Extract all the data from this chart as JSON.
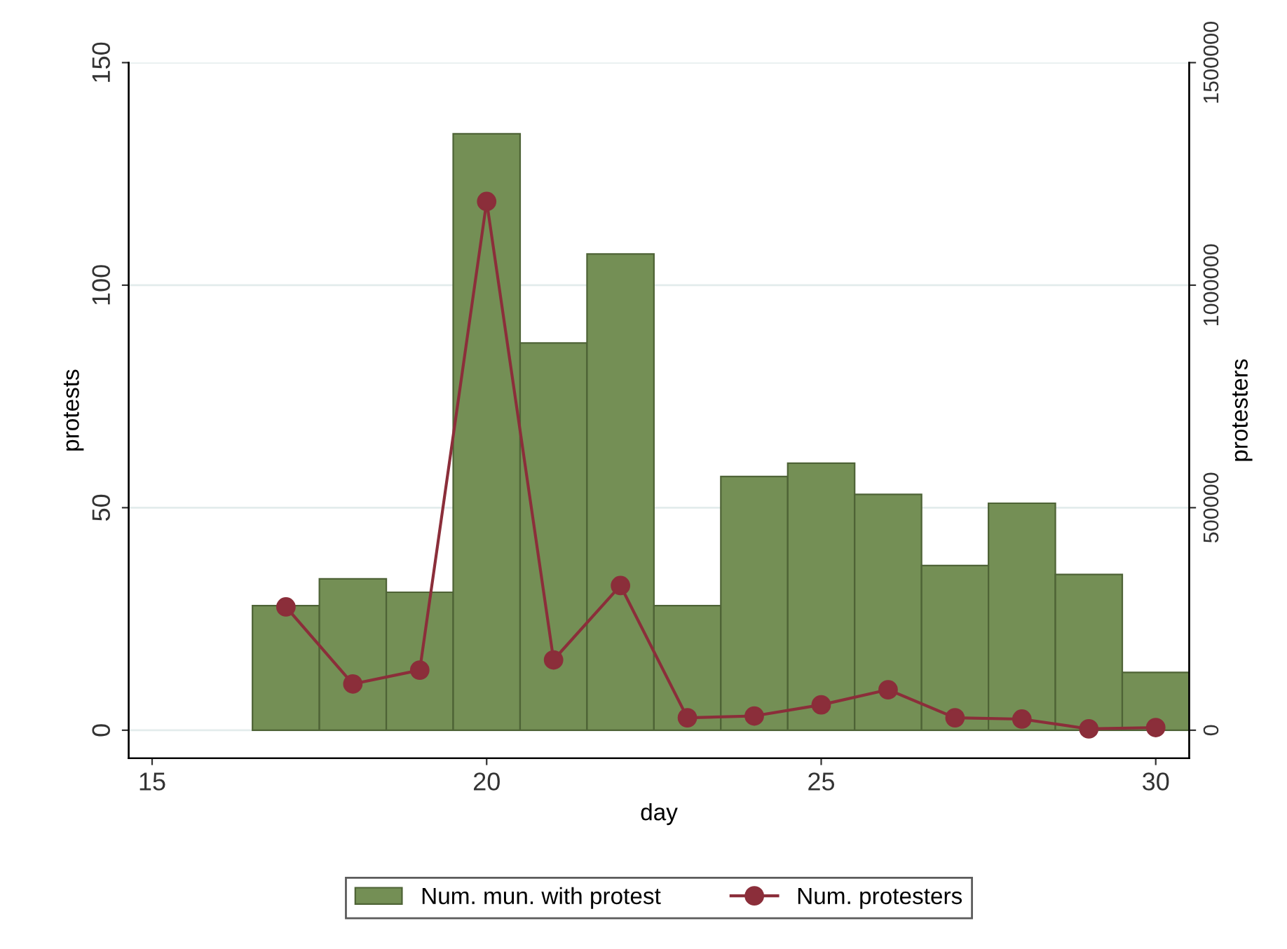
{
  "chart_data": {
    "type": "bar",
    "xlabel": "day",
    "ylabel": "protests",
    "y2label": "protesters",
    "x": [
      17,
      18,
      19,
      20,
      21,
      22,
      23,
      24,
      25,
      26,
      27,
      28,
      29,
      30
    ],
    "series": [
      {
        "name": "Num. mun. with protest",
        "color": "#748f55",
        "values": [
          28,
          34,
          31,
          134,
          87,
          107,
          28,
          57,
          60,
          53,
          37,
          51,
          35,
          13
        ]
      },
      {
        "name": "Num. protesters",
        "type": "line",
        "axis": "y2",
        "color": "#8b2e3a",
        "marker": "circle",
        "values": [
          277000,
          104000,
          135000,
          1188000,
          158000,
          325000,
          28000,
          32000,
          57000,
          91000,
          28000,
          25000,
          3000,
          6000
        ]
      }
    ],
    "xlim": [
      14.65,
      30.5
    ],
    "xticks": [
      15,
      20,
      25,
      30
    ],
    "ylim": [
      -6.3,
      150
    ],
    "yticks": [
      0,
      50,
      100,
      150
    ],
    "y2lim": [
      -63000,
      1500000
    ],
    "y2ticks": [
      0,
      500000,
      1000000,
      1500000
    ],
    "grid": "y",
    "legend": "bottom"
  }
}
